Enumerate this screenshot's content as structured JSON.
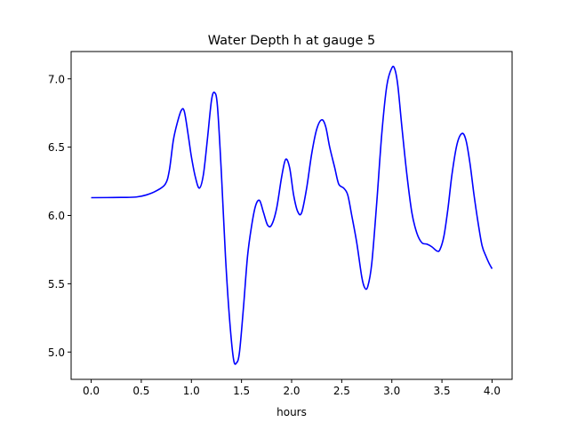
{
  "chart_data": {
    "type": "line",
    "title": "Water Depth h at gauge 5",
    "xlabel": "hours",
    "ylabel": "",
    "xlim": [
      -0.2,
      4.2
    ],
    "ylim": [
      4.8,
      7.2
    ],
    "xticks": [
      0.0,
      0.5,
      1.0,
      1.5,
      2.0,
      2.5,
      3.0,
      3.5,
      4.0
    ],
    "xtick_labels": [
      "0.0",
      "0.5",
      "1.0",
      "1.5",
      "2.0",
      "2.5",
      "3.0",
      "3.5",
      "4.0"
    ],
    "yticks": [
      5.0,
      5.5,
      6.0,
      6.5,
      7.0
    ],
    "ytick_labels": [
      "5.0",
      "5.5",
      "6.0",
      "6.5",
      "7.0"
    ],
    "grid": false,
    "legend": "none",
    "series": [
      {
        "color": "#0000ff",
        "points": [
          [
            0.0,
            6.13
          ],
          [
            0.3,
            6.132
          ],
          [
            0.45,
            6.135
          ],
          [
            0.55,
            6.15
          ],
          [
            0.65,
            6.18
          ],
          [
            0.74,
            6.23
          ],
          [
            0.78,
            6.33
          ],
          [
            0.82,
            6.55
          ],
          [
            0.86,
            6.68
          ],
          [
            0.9,
            6.77
          ],
          [
            0.93,
            6.76
          ],
          [
            0.97,
            6.58
          ],
          [
            1.0,
            6.43
          ],
          [
            1.04,
            6.28
          ],
          [
            1.08,
            6.2
          ],
          [
            1.12,
            6.3
          ],
          [
            1.16,
            6.56
          ],
          [
            1.2,
            6.84
          ],
          [
            1.23,
            6.9
          ],
          [
            1.26,
            6.8
          ],
          [
            1.3,
            6.3
          ],
          [
            1.34,
            5.7
          ],
          [
            1.38,
            5.25
          ],
          [
            1.42,
            4.95
          ],
          [
            1.45,
            4.92
          ],
          [
            1.48,
            5.0
          ],
          [
            1.52,
            5.33
          ],
          [
            1.56,
            5.7
          ],
          [
            1.6,
            5.92
          ],
          [
            1.64,
            6.07
          ],
          [
            1.68,
            6.11
          ],
          [
            1.72,
            6.02
          ],
          [
            1.76,
            5.93
          ],
          [
            1.8,
            5.93
          ],
          [
            1.85,
            6.05
          ],
          [
            1.9,
            6.28
          ],
          [
            1.94,
            6.41
          ],
          [
            1.98,
            6.35
          ],
          [
            2.02,
            6.15
          ],
          [
            2.06,
            6.03
          ],
          [
            2.1,
            6.02
          ],
          [
            2.15,
            6.2
          ],
          [
            2.2,
            6.45
          ],
          [
            2.25,
            6.63
          ],
          [
            2.3,
            6.7
          ],
          [
            2.34,
            6.65
          ],
          [
            2.38,
            6.5
          ],
          [
            2.43,
            6.35
          ],
          [
            2.47,
            6.23
          ],
          [
            2.52,
            6.2
          ],
          [
            2.56,
            6.15
          ],
          [
            2.6,
            6.0
          ],
          [
            2.65,
            5.8
          ],
          [
            2.7,
            5.55
          ],
          [
            2.73,
            5.47
          ],
          [
            2.76,
            5.48
          ],
          [
            2.8,
            5.65
          ],
          [
            2.85,
            6.1
          ],
          [
            2.9,
            6.6
          ],
          [
            2.95,
            6.95
          ],
          [
            3.0,
            7.08
          ],
          [
            3.03,
            7.07
          ],
          [
            3.06,
            6.95
          ],
          [
            3.1,
            6.65
          ],
          [
            3.15,
            6.3
          ],
          [
            3.2,
            6.02
          ],
          [
            3.25,
            5.87
          ],
          [
            3.3,
            5.8
          ],
          [
            3.35,
            5.79
          ],
          [
            3.4,
            5.77
          ],
          [
            3.45,
            5.74
          ],
          [
            3.48,
            5.75
          ],
          [
            3.52,
            5.85
          ],
          [
            3.56,
            6.05
          ],
          [
            3.6,
            6.3
          ],
          [
            3.65,
            6.52
          ],
          [
            3.7,
            6.6
          ],
          [
            3.74,
            6.55
          ],
          [
            3.78,
            6.38
          ],
          [
            3.82,
            6.15
          ],
          [
            3.86,
            5.95
          ],
          [
            3.9,
            5.78
          ],
          [
            3.94,
            5.7
          ],
          [
            3.97,
            5.65
          ],
          [
            4.0,
            5.61
          ]
        ]
      }
    ]
  }
}
